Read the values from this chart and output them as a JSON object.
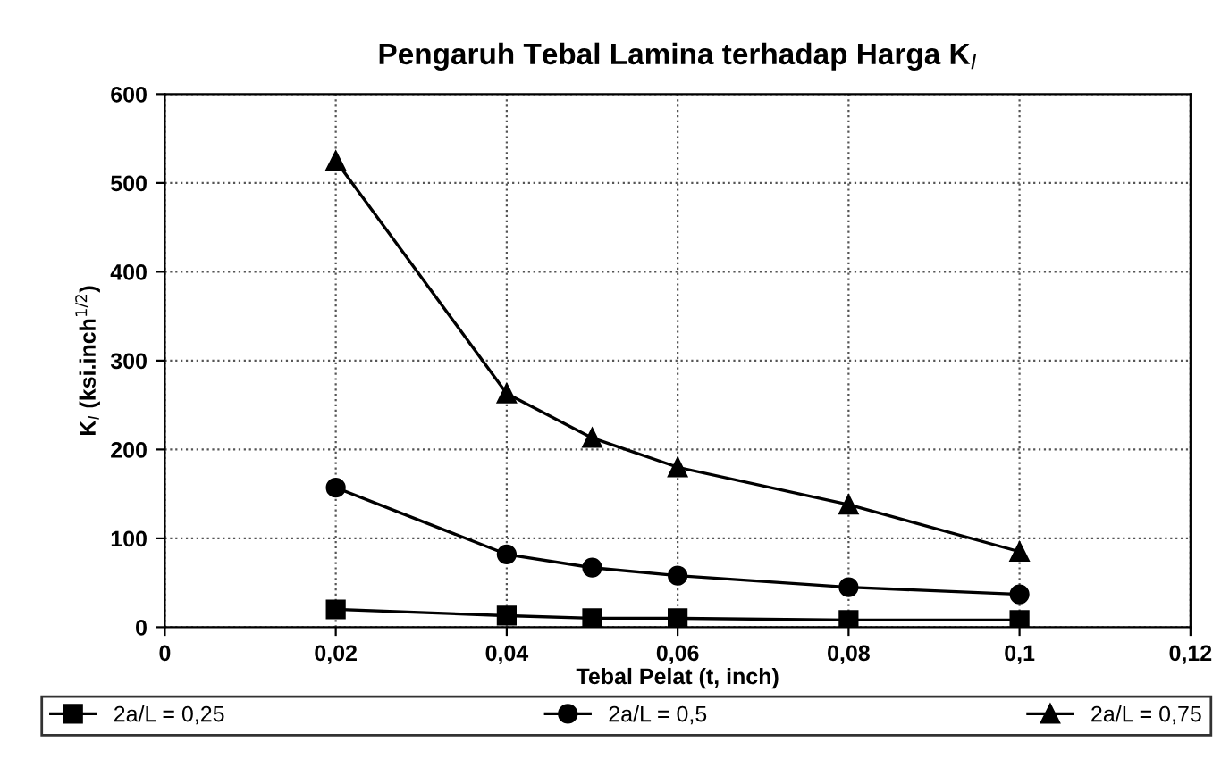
{
  "chart_data": {
    "type": "line",
    "title": "Pengaruh Tebal Lamina terhadap Harga K$_{I}$",
    "xlabel": "Tebal Pelat (t, inch)",
    "ylabel": "K$_{I}$ (ksi.inch$^{1/2}$)",
    "x": [
      0.02,
      0.04,
      0.05,
      0.06,
      0.08,
      0.1
    ],
    "series": [
      {
        "name": "2a/L = 0,25",
        "color": "#000000",
        "marker": "square",
        "values": [
          20,
          13,
          10,
          10,
          8,
          8
        ]
      },
      {
        "name": "2a/L = 0,5",
        "color": "#000000",
        "marker": "circle",
        "values": [
          157,
          82,
          67,
          58,
          45,
          37
        ]
      },
      {
        "name": "2a/L = 0,75",
        "color": "#000000",
        "marker": "triangle",
        "values": [
          525,
          263,
          213,
          180,
          138,
          85
        ]
      }
    ],
    "xlim": [
      0,
      0.12
    ],
    "xticks": [
      0,
      {
        "value": 0.02,
        "label": "0,02"
      },
      {
        "value": 0.04,
        "label": "0,04"
      },
      {
        "value": 0.06,
        "label": "0,06"
      },
      {
        "value": 0.08,
        "label": "0,08"
      },
      {
        "value": 0.1,
        "label": "0,1"
      },
      {
        "value": 0.12,
        "label": "0,12"
      }
    ],
    "ylim": [
      0,
      600
    ],
    "yticks": [
      0,
      100,
      200,
      300,
      400,
      500,
      600
    ],
    "grid": true,
    "line_style": "solid",
    "legend": "bottom"
  }
}
